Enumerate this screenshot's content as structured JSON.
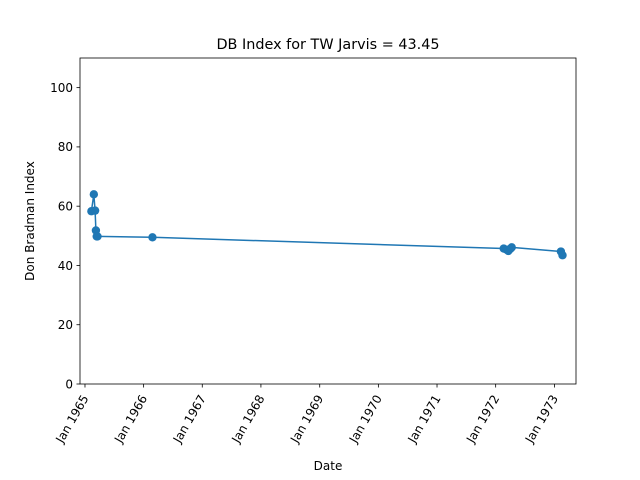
{
  "chart_data": {
    "type": "line",
    "title": "DB Index for TW Jarvis = 43.45",
    "xlabel": "Date",
    "ylabel": "Don Bradman Index",
    "xlim": [
      "1964-12-01",
      "1973-05-15"
    ],
    "ylim": [
      0,
      110
    ],
    "x_ticks": [
      {
        "date": "1965-01-01",
        "label": "Jan 1965"
      },
      {
        "date": "1966-01-01",
        "label": "Jan 1966"
      },
      {
        "date": "1967-01-01",
        "label": "Jan 1967"
      },
      {
        "date": "1968-01-01",
        "label": "Jan 1968"
      },
      {
        "date": "1969-01-01",
        "label": "Jan 1969"
      },
      {
        "date": "1970-01-01",
        "label": "Jan 1970"
      },
      {
        "date": "1971-01-01",
        "label": "Jan 1971"
      },
      {
        "date": "1972-01-01",
        "label": "Jan 1972"
      },
      {
        "date": "1973-01-01",
        "label": "Jan 1973"
      }
    ],
    "y_ticks": [
      0,
      20,
      40,
      60,
      80,
      100
    ],
    "grid": false,
    "legend": "none",
    "color": "#1f77b4",
    "series": [
      {
        "x": [
          "1965-02-10",
          "1965-02-25",
          "1965-03-05",
          "1965-03-10",
          "1965-03-15",
          "1965-03-20",
          "1966-02-25",
          "1972-02-20",
          "1972-03-10",
          "1972-03-20",
          "1972-04-01",
          "1972-04-10",
          "1973-02-10",
          "1973-02-20"
        ],
        "y": [
          58.3,
          64.0,
          58.5,
          51.8,
          49.8,
          49.8,
          49.5,
          45.7,
          45.3,
          44.9,
          45.6,
          46.1,
          44.7,
          43.45
        ]
      }
    ]
  }
}
